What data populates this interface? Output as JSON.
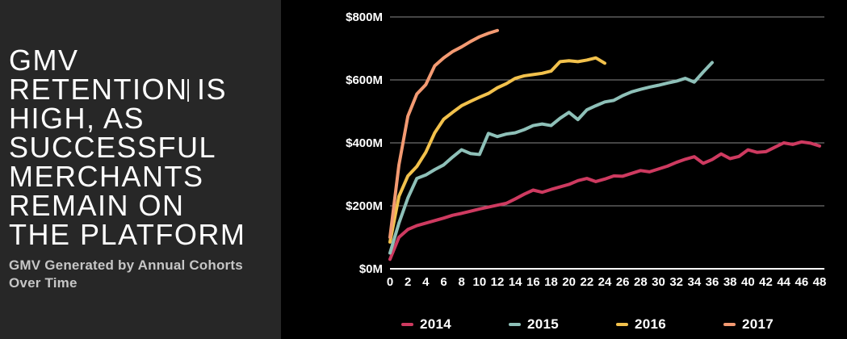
{
  "slide": {
    "title": "GMV\nRETENTION IS\nHIGH, AS\nSUCCESSFUL\nMERCHANTS\nREMAIN ON\nTHE PLATFORM",
    "subtitle": "GMV Generated by Annual Cohorts\nOver Time"
  },
  "colors": {
    "left_panel_bg": "#272727",
    "chart_bg": "#000000",
    "gridline": "#8a8a8a",
    "zero_axis": "#ffffff",
    "tick_label": "#ffffff",
    "series_2014": "#ce3a60",
    "series_2015": "#8ec0b8",
    "series_2016": "#f2c14c",
    "series_2017": "#f39a72"
  },
  "chart_data": {
    "type": "line",
    "title": "",
    "xlabel": "",
    "ylabel": "",
    "xlim": [
      0,
      48
    ],
    "ylim": [
      0,
      800
    ],
    "grid": true,
    "legend_position": "bottom",
    "x_ticks": [
      0,
      2,
      4,
      6,
      8,
      10,
      12,
      14,
      16,
      18,
      20,
      22,
      24,
      26,
      28,
      30,
      32,
      34,
      36,
      38,
      40,
      42,
      44,
      46,
      48
    ],
    "y_ticks": [
      {
        "value": 0,
        "label": "$0M"
      },
      {
        "value": 200,
        "label": "$200M"
      },
      {
        "value": 400,
        "label": "$400M"
      },
      {
        "value": 600,
        "label": "$600M"
      },
      {
        "value": 800,
        "label": "$800M"
      }
    ],
    "y_unit": "M USD",
    "series": [
      {
        "name": "2014",
        "color": "#ce3a60",
        "x": [
          0,
          1,
          2,
          3,
          4,
          5,
          6,
          7,
          8,
          9,
          10,
          11,
          12,
          13,
          14,
          15,
          16,
          17,
          18,
          19,
          20,
          21,
          22,
          23,
          24,
          25,
          26,
          27,
          28,
          29,
          30,
          31,
          32,
          33,
          34,
          35,
          36,
          37,
          38,
          39,
          40,
          41,
          42,
          43,
          44,
          45,
          46,
          47,
          48
        ],
        "values": [
          30,
          100,
          125,
          137,
          145,
          153,
          161,
          170,
          176,
          183,
          190,
          196,
          202,
          208,
          222,
          237,
          250,
          243,
          252,
          260,
          268,
          280,
          287,
          277,
          285,
          295,
          294,
          303,
          312,
          308,
          317,
          326,
          338,
          348,
          356,
          335,
          347,
          365,
          350,
          357,
          378,
          370,
          372,
          386,
          400,
          395,
          403,
          399,
          390
        ]
      },
      {
        "name": "2015",
        "color": "#8ec0b8",
        "x": [
          0,
          1,
          2,
          3,
          4,
          5,
          6,
          7,
          8,
          9,
          10,
          11,
          12,
          13,
          14,
          15,
          16,
          17,
          18,
          19,
          20,
          21,
          22,
          23,
          24,
          25,
          26,
          27,
          28,
          29,
          30,
          31,
          32,
          33,
          34,
          35,
          36
        ],
        "values": [
          50,
          145,
          225,
          287,
          298,
          315,
          330,
          355,
          378,
          366,
          363,
          430,
          420,
          428,
          432,
          442,
          455,
          460,
          455,
          478,
          497,
          474,
          505,
          518,
          530,
          535,
          550,
          562,
          570,
          577,
          583,
          590,
          596,
          605,
          593,
          625,
          655
        ]
      },
      {
        "name": "2016",
        "color": "#f2c14c",
        "x": [
          0,
          1,
          2,
          3,
          4,
          5,
          6,
          7,
          8,
          9,
          10,
          11,
          12,
          13,
          14,
          15,
          16,
          17,
          18,
          19,
          20,
          21,
          22,
          23,
          24
        ],
        "values": [
          85,
          230,
          295,
          325,
          370,
          432,
          475,
          497,
          518,
          532,
          545,
          557,
          575,
          588,
          605,
          613,
          617,
          621,
          628,
          658,
          661,
          658,
          663,
          670,
          653
        ]
      },
      {
        "name": "2017",
        "color": "#f39a72",
        "x": [
          0,
          1,
          2,
          3,
          4,
          5,
          6,
          7,
          8,
          9,
          10,
          11,
          12
        ],
        "values": [
          100,
          330,
          485,
          555,
          585,
          645,
          670,
          690,
          705,
          722,
          737,
          748,
          757
        ]
      }
    ]
  }
}
